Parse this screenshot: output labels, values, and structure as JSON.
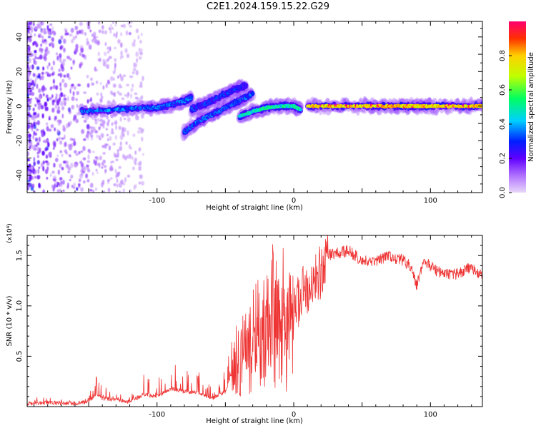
{
  "title": "C2E1.2024.159.15.22.G29",
  "chart_data": [
    {
      "type": "heatmap",
      "name": "spectrogram",
      "xlabel": "Height of straight line (km)",
      "ylabel": "Frequency (Hz)",
      "xlim": [
        -195,
        138
      ],
      "ylim": [
        -50,
        49
      ],
      "xticks": [
        -100,
        0,
        100
      ],
      "yticks": [
        -40,
        -20,
        0,
        20,
        40
      ],
      "colorbar": {
        "label": "Normalized spectral amplitude",
        "range": [
          0,
          1
        ],
        "ticks": [
          0.0,
          0.2,
          0.4,
          0.6,
          0.8
        ],
        "colors": [
          "#e8d8f8",
          "#b070ff",
          "#6000ff",
          "#0020ff",
          "#00d0ff",
          "#00ff60",
          "#c0ff00",
          "#ffd000",
          "#ff3000",
          "#ff0070"
        ]
      },
      "ridges": [
        {
          "x": [
            -155,
            -130,
            -110,
            -100,
            -90,
            -80,
            -75
          ],
          "y": [
            -3,
            -2,
            -1,
            -1,
            1,
            3,
            5
          ],
          "amplitude": 0.35
        },
        {
          "x": [
            -75,
            -65,
            -55,
            -45,
            -35
          ],
          "y": [
            -2,
            1,
            5,
            9,
            12
          ],
          "amplitude": 0.3
        },
        {
          "x": [
            -80,
            -70,
            -60,
            -50,
            -40,
            -30
          ],
          "y": [
            -15,
            -9,
            -5,
            -1,
            3,
            7
          ],
          "amplitude": 0.35
        },
        {
          "x": [
            -40,
            -30,
            -20,
            -10,
            0,
            5
          ],
          "y": [
            -6,
            -3,
            -1,
            0,
            0,
            -2
          ],
          "amplitude": 0.5
        },
        {
          "x": [
            10,
            50,
            80,
            100,
            138
          ],
          "y": [
            0,
            0,
            0,
            0,
            0
          ],
          "amplitude": 0.75
        }
      ]
    },
    {
      "type": "line",
      "name": "snr",
      "xlabel": "Height of straight line (km)",
      "ylabel": "SNR (10 * v/v)",
      "yscale_label": "(x10⁴)",
      "xlim": [
        -195,
        138
      ],
      "ylim": [
        0,
        1.7
      ],
      "xticks": [
        -100,
        0,
        100
      ],
      "yticks": [
        0.5,
        1.0,
        1.5
      ],
      "ytick_labels": [
        "0.5",
        "1.0",
        "1.5"
      ],
      "color": "#ee3333",
      "series": [
        {
          "name": "SNR",
          "x": [
            -195,
            -180,
            -160,
            -150,
            -145,
            -140,
            -130,
            -120,
            -110,
            -100,
            -90,
            -80,
            -70,
            -60,
            -50,
            -45,
            -40,
            -30,
            -20,
            -15,
            -10,
            -5,
            0,
            5,
            10,
            15,
            20,
            25,
            30,
            40,
            50,
            60,
            70,
            80,
            85,
            90,
            95,
            100,
            110,
            120,
            130,
            138
          ],
          "y": [
            0.03,
            0.04,
            0.03,
            0.05,
            0.12,
            0.08,
            0.07,
            0.05,
            0.12,
            0.1,
            0.18,
            0.15,
            0.14,
            0.08,
            0.15,
            0.35,
            0.45,
            0.65,
            0.85,
            0.9,
            0.7,
            0.65,
            0.95,
            1.1,
            1.2,
            1.25,
            1.35,
            1.5,
            1.52,
            1.55,
            1.45,
            1.45,
            1.5,
            1.45,
            1.4,
            1.2,
            1.45,
            1.4,
            1.3,
            1.32,
            1.38,
            1.3
          ]
        }
      ]
    }
  ]
}
